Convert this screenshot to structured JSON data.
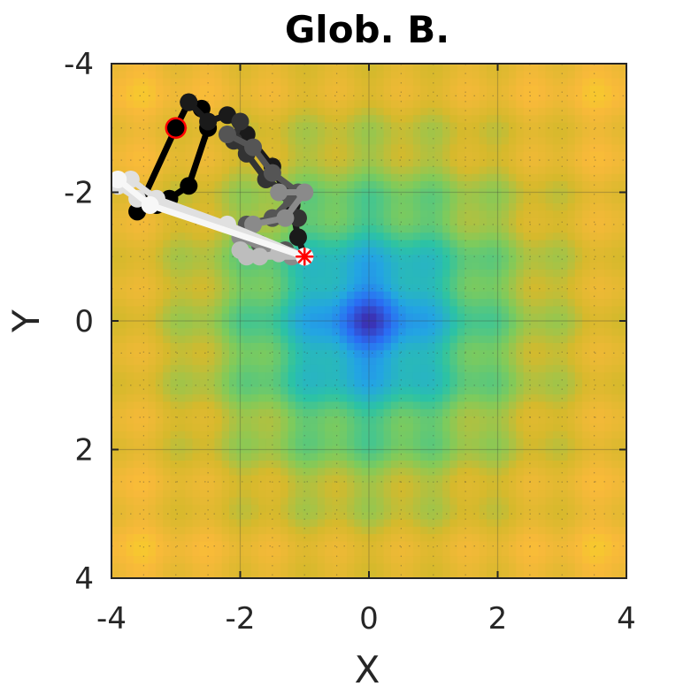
{
  "chart_data": {
    "type": "line",
    "title": "Glob. B.",
    "xlabel": "X",
    "ylabel": "Y",
    "xlim": [
      -4,
      4
    ],
    "ylim": [
      -4,
      4
    ],
    "y_axis_reversed": true,
    "xticks": [
      -4,
      -2,
      0,
      2,
      4
    ],
    "yticks": [
      -4,
      -2,
      0,
      2,
      4
    ],
    "xtick_labels": [
      "-4",
      "-2",
      "0",
      "2",
      "4"
    ],
    "ytick_labels": [
      "-4",
      "-2",
      "0",
      "2",
      "4"
    ],
    "grid": true,
    "legend": "none",
    "background": {
      "type": "heatmap",
      "function": "Rastrigin-like multimodal surface",
      "minimum": [
        0,
        0
      ],
      "colormap": [
        "#3e26a8",
        "#2a6ef4",
        "#23a5e3",
        "#2cc3a4",
        "#7fcb5b",
        "#d6b92c",
        "#f8b93a",
        "#f4e31a"
      ]
    },
    "start_point": {
      "x": -3,
      "y": -3,
      "marker": "circle",
      "color": "#ff0000"
    },
    "end_point": {
      "x": -1,
      "y": -1,
      "marker": "asterisk",
      "color": "#ff0000"
    },
    "series": [
      {
        "color": "#000000",
        "values": [
          [
            -3,
            -3
          ],
          [
            -2.8,
            -3.4
          ],
          [
            -2.6,
            -3.3
          ],
          [
            -2.5,
            -3.0
          ],
          [
            -2.8,
            -2.1
          ],
          [
            -3.1,
            -1.9
          ],
          [
            -3.3,
            -1.8
          ],
          [
            -3.6,
            -1.7
          ],
          [
            -3,
            -3
          ]
        ]
      },
      {
        "color": "#1a1a1a",
        "values": [
          [
            -2.8,
            -3.4
          ],
          [
            -2.5,
            -3.1
          ],
          [
            -2.2,
            -3.2
          ],
          [
            -1.9,
            -2.9
          ],
          [
            -1.5,
            -2.4
          ],
          [
            -1.2,
            -1.8
          ],
          [
            -1.1,
            -1.3
          ],
          [
            -1.0,
            -1.0
          ]
        ]
      },
      {
        "color": "#333333",
        "values": [
          [
            -2.0,
            -3.1
          ],
          [
            -2.1,
            -2.8
          ],
          [
            -1.9,
            -2.6
          ],
          [
            -1.6,
            -2.2
          ],
          [
            -1.3,
            -2.0
          ],
          [
            -1.1,
            -1.6
          ]
        ]
      },
      {
        "color": "#555555",
        "values": [
          [
            -2.2,
            -2.9
          ],
          [
            -1.8,
            -2.7
          ],
          [
            -1.5,
            -2.3
          ],
          [
            -1.1,
            -2.0
          ],
          [
            -1.2,
            -1.9
          ],
          [
            -1.5,
            -1.6
          ],
          [
            -1.9,
            -1.5
          ],
          [
            -1.7,
            -1.2
          ],
          [
            -1.3,
            -1.1
          ],
          [
            -1.0,
            -1.0
          ]
        ]
      },
      {
        "color": "#8a8a8a",
        "values": [
          [
            -1.4,
            -2.0
          ],
          [
            -1.0,
            -2.0
          ],
          [
            -1.3,
            -1.6
          ],
          [
            -1.8,
            -1.5
          ],
          [
            -2.0,
            -1.3
          ],
          [
            -1.6,
            -1.1
          ],
          [
            -1.2,
            -1.0
          ]
        ]
      },
      {
        "color": "#bdbdbd",
        "values": [
          [
            -1.0,
            -1.0
          ],
          [
            -1.9,
            -1.0
          ],
          [
            -2.0,
            -1.1
          ],
          [
            -1.7,
            -1.0
          ],
          [
            -1.4,
            -1.05
          ],
          [
            -1.0,
            -1.0
          ]
        ]
      },
      {
        "color": "#e0e0e0",
        "values": [
          [
            -1.0,
            -1.0
          ],
          [
            -3.6,
            -1.9
          ],
          [
            -3.9,
            -2.1
          ],
          [
            -3.7,
            -2.2
          ],
          [
            -3.3,
            -1.9
          ],
          [
            -2.2,
            -1.5
          ],
          [
            -1.0,
            -1.0
          ]
        ]
      },
      {
        "color": "#f7f7f7",
        "values": [
          [
            -3.9,
            -2.2
          ],
          [
            -3.4,
            -1.8
          ],
          [
            -1.0,
            -1.0
          ]
        ]
      }
    ]
  }
}
